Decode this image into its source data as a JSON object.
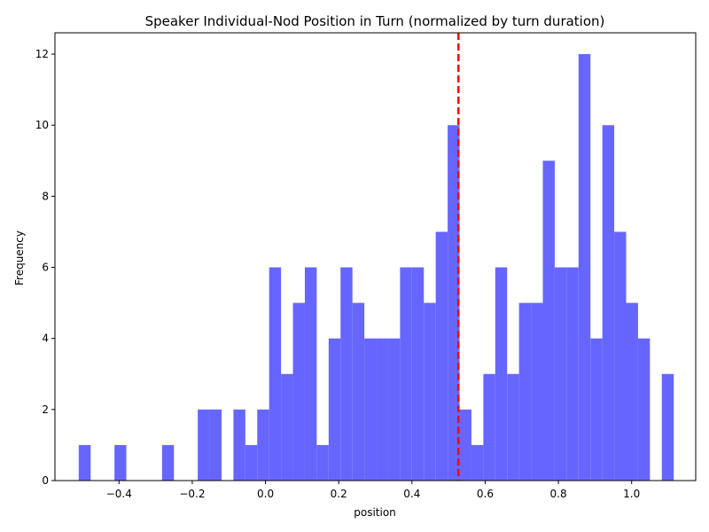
{
  "chart_data": {
    "type": "bar",
    "title": "Speaker Individual-Nod Position in Turn (normalized by turn duration)",
    "xlabel": "position",
    "ylabel": "Frequency",
    "xlim": [
      -0.575,
      1.175
    ],
    "ylim": [
      0,
      12.6
    ],
    "xticks": [
      -0.4,
      -0.2,
      0.0,
      0.2,
      0.4,
      0.6,
      0.8,
      1.0
    ],
    "xtick_labels": [
      "−0.4",
      "−0.2",
      "0.0",
      "0.2",
      "0.4",
      "0.6",
      "0.8",
      "1.0"
    ],
    "yticks": [
      0,
      2,
      4,
      6,
      8,
      10,
      12
    ],
    "ytick_labels": [
      "0",
      "2",
      "4",
      "6",
      "8",
      "10",
      "12"
    ],
    "bin_start": -0.51,
    "bin_width": 0.0325,
    "counts": [
      1,
      0,
      0,
      1,
      0,
      0,
      0,
      1,
      0,
      0,
      2,
      2,
      0,
      2,
      1,
      2,
      6,
      3,
      5,
      6,
      1,
      4,
      6,
      5,
      4,
      4,
      4,
      6,
      6,
      5,
      7,
      10,
      2,
      1,
      3,
      6,
      3,
      5,
      5,
      9,
      6,
      6,
      12,
      4,
      10,
      7,
      5,
      4,
      0,
      3
    ],
    "bar_color": "#6666ff",
    "mean_line": {
      "x": 0.527,
      "color": "#ff0000"
    },
    "grid": false
  }
}
